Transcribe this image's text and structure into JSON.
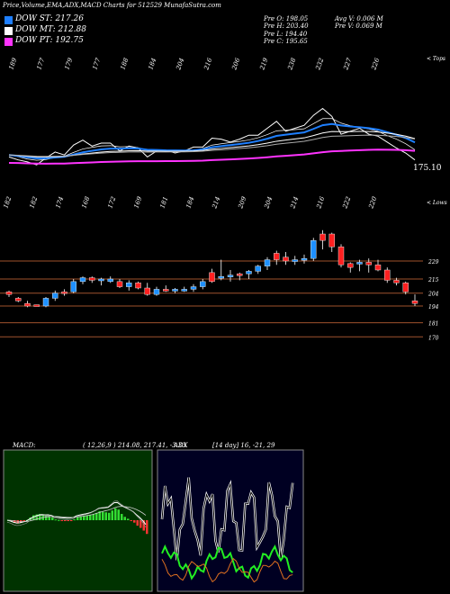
{
  "header": {
    "title": "Price,Volume,EMA,ADX,MACD Charts for 512529 MunafaSutra.com",
    "ohlc_left": [
      "Pre  O: 198.05",
      "Pre  H: 203.40",
      "Pre  L: 194.40",
      "Pre  C: 195.65"
    ],
    "ohlc_right": [
      "Avg V: 0.006  M",
      "Pre  V: 0.069 M"
    ]
  },
  "legend": [
    {
      "label": "DOW ST: 217.26",
      "color": "#1e7fff"
    },
    {
      "label": "DOW MT: 212.88",
      "color": "#ffffff"
    },
    {
      "label": "DOW PT: 192.75",
      "color": "#ff33ff"
    }
  ],
  "price_panel": {
    "top_label": "< Tops",
    "lows_label": "< Lows",
    "last_value_label": "175.10",
    "top_numbers": [
      "189",
      "177",
      "179",
      "177",
      "188",
      "184",
      "204",
      "216",
      "206",
      "219",
      "238",
      "232",
      "227",
      "226"
    ],
    "low_numbers": [
      "182",
      "182",
      "174",
      "168",
      "172",
      "169",
      "181",
      "184",
      "214",
      "209",
      "204",
      "214",
      "216",
      "222",
      "220"
    ]
  },
  "chart_data": {
    "type": "candlestick",
    "price_levels": [
      229,
      215,
      204,
      194,
      181,
      170
    ],
    "candles": [
      {
        "o": 205,
        "h": 206,
        "l": 201,
        "c": 203,
        "color": "red"
      },
      {
        "o": 200,
        "h": 201,
        "l": 197,
        "c": 198,
        "color": "red"
      },
      {
        "o": 196,
        "h": 198,
        "l": 193,
        "c": 194,
        "color": "red"
      },
      {
        "o": 195,
        "h": 195,
        "l": 194,
        "c": 195,
        "color": "red"
      },
      {
        "o": 194,
        "h": 201,
        "l": 193,
        "c": 200,
        "color": "blue"
      },
      {
        "o": 200,
        "h": 206,
        "l": 198,
        "c": 204,
        "color": "blue"
      },
      {
        "o": 204,
        "h": 207,
        "l": 202,
        "c": 205,
        "color": "red"
      },
      {
        "o": 205,
        "h": 215,
        "l": 204,
        "c": 213,
        "color": "blue"
      },
      {
        "o": 213,
        "h": 217,
        "l": 211,
        "c": 216,
        "color": "blue"
      },
      {
        "o": 216,
        "h": 217,
        "l": 212,
        "c": 214,
        "color": "red"
      },
      {
        "o": 214,
        "h": 216,
        "l": 210,
        "c": 215,
        "color": "blue"
      },
      {
        "o": 215,
        "h": 217,
        "l": 212,
        "c": 213,
        "color": "blue"
      },
      {
        "o": 213,
        "h": 215,
        "l": 208,
        "c": 209,
        "color": "red"
      },
      {
        "o": 209,
        "h": 214,
        "l": 206,
        "c": 212,
        "color": "blue"
      },
      {
        "o": 212,
        "h": 213,
        "l": 207,
        "c": 208,
        "color": "red"
      },
      {
        "o": 208,
        "h": 212,
        "l": 202,
        "c": 203,
        "color": "red"
      },
      {
        "o": 203,
        "h": 209,
        "l": 202,
        "c": 207,
        "color": "blue"
      },
      {
        "o": 207,
        "h": 210,
        "l": 205,
        "c": 206,
        "color": "red"
      },
      {
        "o": 206,
        "h": 208,
        "l": 204,
        "c": 207,
        "color": "blue"
      },
      {
        "o": 207,
        "h": 209,
        "l": 205,
        "c": 207,
        "color": "blue"
      },
      {
        "o": 207,
        "h": 211,
        "l": 205,
        "c": 209,
        "color": "blue"
      },
      {
        "o": 209,
        "h": 215,
        "l": 207,
        "c": 213,
        "color": "blue"
      },
      {
        "o": 213,
        "h": 223,
        "l": 212,
        "c": 220,
        "color": "red"
      },
      {
        "o": 216,
        "h": 230,
        "l": 214,
        "c": 217,
        "color": "blue"
      },
      {
        "o": 217,
        "h": 222,
        "l": 213,
        "c": 218,
        "color": "blue"
      },
      {
        "o": 218,
        "h": 220,
        "l": 214,
        "c": 219,
        "color": "red"
      },
      {
        "o": 219,
        "h": 222,
        "l": 215,
        "c": 221,
        "color": "blue"
      },
      {
        "o": 221,
        "h": 226,
        "l": 219,
        "c": 225,
        "color": "blue"
      },
      {
        "o": 225,
        "h": 232,
        "l": 222,
        "c": 230,
        "color": "blue"
      },
      {
        "o": 230,
        "h": 237,
        "l": 226,
        "c": 235,
        "color": "red"
      },
      {
        "o": 232,
        "h": 236,
        "l": 226,
        "c": 229,
        "color": "red"
      },
      {
        "o": 229,
        "h": 233,
        "l": 226,
        "c": 230,
        "color": "blue"
      },
      {
        "o": 230,
        "h": 234,
        "l": 227,
        "c": 231,
        "color": "blue"
      },
      {
        "o": 231,
        "h": 247,
        "l": 229,
        "c": 245,
        "color": "blue"
      },
      {
        "o": 245,
        "h": 253,
        "l": 238,
        "c": 250,
        "color": "red"
      },
      {
        "o": 250,
        "h": 251,
        "l": 236,
        "c": 240,
        "color": "red"
      },
      {
        "o": 240,
        "h": 242,
        "l": 224,
        "c": 226,
        "color": "red"
      },
      {
        "o": 224,
        "h": 228,
        "l": 220,
        "c": 227,
        "color": "red"
      },
      {
        "o": 227,
        "h": 230,
        "l": 221,
        "c": 228,
        "color": "blue"
      },
      {
        "o": 228,
        "h": 231,
        "l": 220,
        "c": 226,
        "color": "red"
      },
      {
        "o": 226,
        "h": 230,
        "l": 221,
        "c": 222,
        "color": "red"
      },
      {
        "o": 222,
        "h": 224,
        "l": 212,
        "c": 214,
        "color": "red"
      },
      {
        "o": 214,
        "h": 216,
        "l": 210,
        "c": 212,
        "color": "red"
      },
      {
        "o": 212,
        "h": 213,
        "l": 203,
        "c": 205,
        "color": "red"
      },
      {
        "o": 198,
        "h": 203,
        "l": 194,
        "c": 196,
        "color": "red"
      }
    ],
    "lines": {
      "st_color": "#1e7fff",
      "mt_color": "#ffffff",
      "pt_color": "#ff33ff",
      "price_color": "#ffffff"
    }
  },
  "macd_panel": {
    "label": "MACD:",
    "values": "( 12,26,9 ) 214.08,  217.41, -3.33"
  },
  "adx_panel": {
    "label": "ADX",
    "values": "[14 day] 16, -21, 29"
  }
}
